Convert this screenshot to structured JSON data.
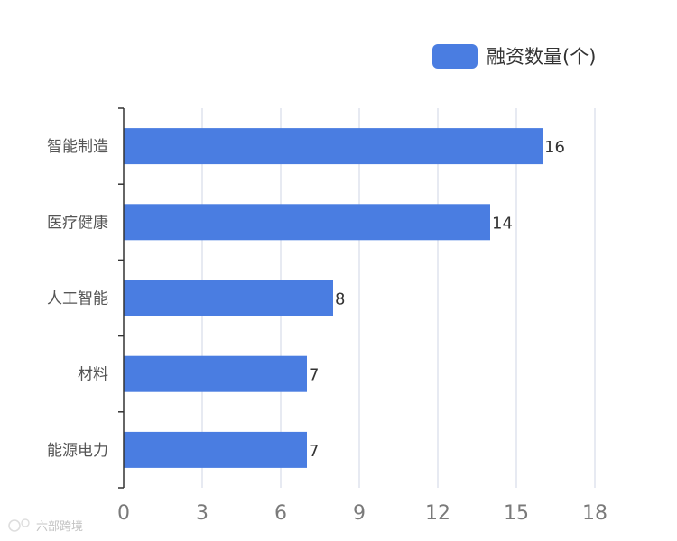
{
  "chart_data": {
    "type": "bar",
    "orientation": "horizontal",
    "categories": [
      "智能制造",
      "医疗健康",
      "人工智能",
      "材料",
      "能源电力"
    ],
    "series": [
      {
        "name": "融资数量(个)",
        "values": [
          16,
          14,
          8,
          7,
          7
        ]
      }
    ],
    "xlim": [
      0,
      18
    ],
    "x_ticks": [
      "0",
      "3",
      "6",
      "9",
      "12",
      "15",
      "18"
    ],
    "grid": "vertical",
    "legend_position": "top-right",
    "show_data_labels": true
  },
  "colors": {
    "bar": "#4a7de1",
    "grid": "#d7dde8",
    "axis": "#333333"
  },
  "watermark": {
    "text": "六部跨境"
  }
}
